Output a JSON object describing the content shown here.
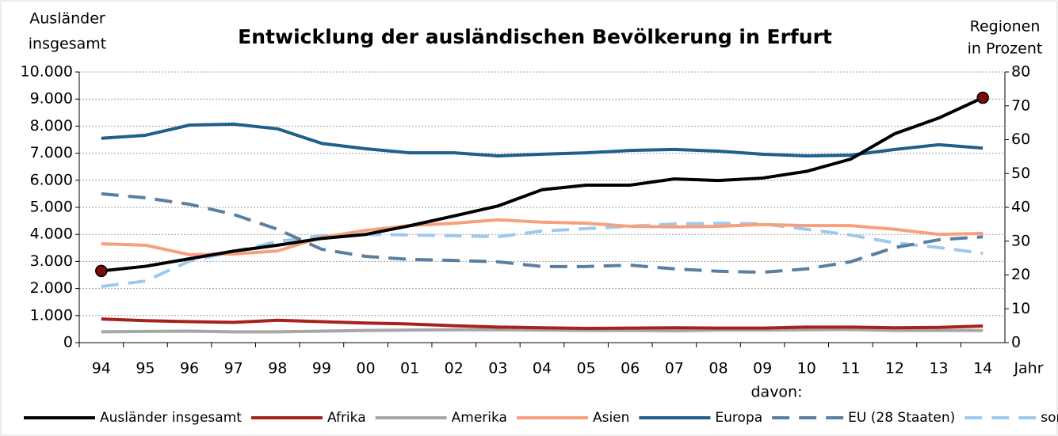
{
  "chart_data": {
    "type": "line",
    "title": "Entwicklung der ausländischen Bevölkerung in Erfurt",
    "y_label": [
      "Ausländer",
      "insgesamt"
    ],
    "y2_label": [
      "Regionen",
      "in Prozent"
    ],
    "x_label": "Jahr",
    "legend_note": "davon:",
    "categories": [
      "94",
      "95",
      "96",
      "97",
      "98",
      "99",
      "00",
      "01",
      "02",
      "03",
      "04",
      "05",
      "06",
      "07",
      "08",
      "09",
      "10",
      "11",
      "12",
      "13",
      "14"
    ],
    "ylim": [
      0,
      10000
    ],
    "yticks": [
      0,
      {
        "value": 1000,
        "label": "1.000"
      },
      {
        "value": 2000,
        "label": "2.000"
      },
      {
        "value": 3000,
        "label": "3.000"
      },
      {
        "value": 4000,
        "label": "4.000"
      },
      {
        "value": 5000,
        "label": "5.000"
      },
      {
        "value": 6000,
        "label": "6.000"
      },
      {
        "value": 7000,
        "label": "7.000"
      },
      {
        "value": 8000,
        "label": "8.000"
      },
      {
        "value": 9000,
        "label": "9.000"
      },
      {
        "value": 10000,
        "label": "10.000"
      }
    ],
    "y2lim": [
      0,
      80
    ],
    "y2ticks": [
      0,
      10,
      20,
      30,
      40,
      50,
      60,
      70,
      80
    ],
    "grid": true,
    "legend": "bottom",
    "endpoint_markers": true,
    "marker_color": "#7a0c0c",
    "series": [
      {
        "name": "Ausländer insgesamt",
        "color": "#000000",
        "dash": false,
        "values": [
          2650,
          2820,
          3100,
          3380,
          3600,
          3850,
          4000,
          4320,
          4680,
          5050,
          5650,
          5820,
          5820,
          6050,
          5990,
          6080,
          6330,
          6780,
          7720,
          8300,
          9050
        ]
      },
      {
        "name": "Afrika",
        "color": "#a5231c",
        "dash": false,
        "axis": "y2",
        "values": [
          7.0,
          6.5,
          6.2,
          6.0,
          6.6,
          6.2,
          5.8,
          5.5,
          5.0,
          4.6,
          4.4,
          4.2,
          4.3,
          4.4,
          4.3,
          4.3,
          4.6,
          4.6,
          4.4,
          4.5,
          4.9
        ]
      },
      {
        "name": "Amerika",
        "color": "#a6a6a6",
        "dash": false,
        "axis": "y2",
        "values": [
          3.2,
          3.3,
          3.4,
          3.2,
          3.2,
          3.4,
          3.6,
          3.7,
          3.8,
          3.8,
          3.7,
          3.6,
          3.6,
          3.5,
          3.7,
          3.7,
          3.8,
          3.9,
          3.6,
          3.6,
          3.6
        ]
      },
      {
        "name": "Asien",
        "color": "#f7a07e",
        "dash": false,
        "axis": "y2",
        "values": [
          29.2,
          28.8,
          26.0,
          26.2,
          27.1,
          31.1,
          33.2,
          34.6,
          35.3,
          36.3,
          35.6,
          35.3,
          34.4,
          34.2,
          34.4,
          34.9,
          34.6,
          34.6,
          33.5,
          32.0,
          32.3
        ]
      },
      {
        "name": "Europa",
        "color": "#1f5f8b",
        "dash": false,
        "axis": "y2",
        "values": [
          60.4,
          61.3,
          64.3,
          64.6,
          63.2,
          58.9,
          57.3,
          56.1,
          56.1,
          55.2,
          55.7,
          56.1,
          56.8,
          57.1,
          56.6,
          55.7,
          55.2,
          55.4,
          57.1,
          58.5,
          57.5
        ]
      },
      {
        "name": "EU (28 Staaten)",
        "color": "#5a7fa0",
        "dash": true,
        "axis": "y2",
        "values": [
          44.0,
          42.8,
          40.9,
          37.9,
          33.5,
          27.6,
          25.5,
          24.6,
          24.3,
          23.9,
          22.5,
          22.5,
          22.9,
          21.8,
          21.1,
          20.8,
          21.8,
          23.9,
          28.1,
          30.4,
          31.3
        ]
      },
      {
        "name": "sonstiges Europa",
        "color": "#9fc8ee",
        "dash": true,
        "axis": "y2",
        "values": [
          16.6,
          18.2,
          24.1,
          26.9,
          29.9,
          31.6,
          32.0,
          31.8,
          31.6,
          31.3,
          33.0,
          33.7,
          34.4,
          35.1,
          35.3,
          35.1,
          33.5,
          31.8,
          29.5,
          28.1,
          26.4
        ]
      }
    ]
  }
}
